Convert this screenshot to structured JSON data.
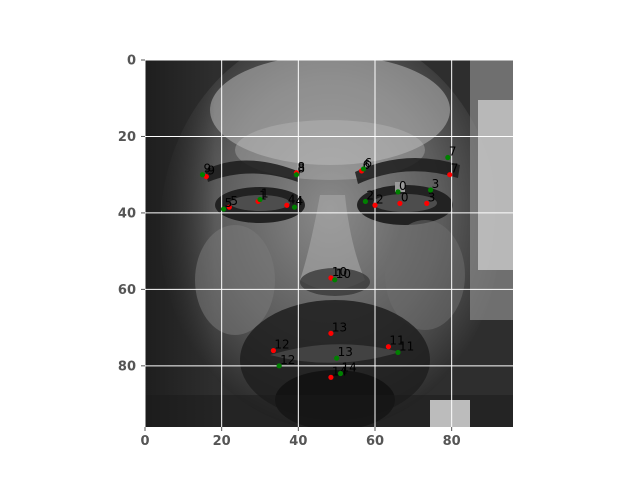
{
  "chart_data": {
    "type": "scatter",
    "title": "",
    "xlabel": "",
    "ylabel": "",
    "xlim": [
      0,
      96
    ],
    "ylim": [
      96,
      0
    ],
    "x_ticks": [
      "0",
      "20",
      "40",
      "60",
      "80"
    ],
    "y_ticks": [
      "0",
      "20",
      "40",
      "60",
      "80"
    ],
    "grid": true,
    "background": "grayscale face photograph",
    "series": [
      {
        "color": "#ff0000",
        "points": [
          {
            "x": 66.5,
            "y": 37.5,
            "label": "0"
          },
          {
            "x": 29.5,
            "y": 37.0,
            "label": "1"
          },
          {
            "x": 60.0,
            "y": 38.0,
            "label": "2"
          },
          {
            "x": 73.5,
            "y": 37.5,
            "label": "3"
          },
          {
            "x": 37.0,
            "y": 38.0,
            "label": "4"
          },
          {
            "x": 22.0,
            "y": 38.5,
            "label": "5"
          },
          {
            "x": 56.5,
            "y": 29.0,
            "label": "6"
          },
          {
            "x": 79.5,
            "y": 30.0,
            "label": "7"
          },
          {
            "x": 39.5,
            "y": 29.5,
            "label": "8"
          },
          {
            "x": 16.0,
            "y": 30.5,
            "label": "9"
          },
          {
            "x": 48.5,
            "y": 57.0,
            "label": "10"
          },
          {
            "x": 63.5,
            "y": 75.0,
            "label": "11"
          },
          {
            "x": 33.5,
            "y": 76.0,
            "label": "12"
          },
          {
            "x": 48.5,
            "y": 71.5,
            "label": "13"
          },
          {
            "x": 48.5,
            "y": 83.0,
            "label": "14"
          }
        ]
      },
      {
        "color": "#008000",
        "points": [
          {
            "x": 66.0,
            "y": 34.5,
            "label": "0"
          },
          {
            "x": 30.0,
            "y": 36.5,
            "label": "1"
          },
          {
            "x": 57.5,
            "y": 37.0,
            "label": "2"
          },
          {
            "x": 74.5,
            "y": 34.0,
            "label": "3"
          },
          {
            "x": 39.0,
            "y": 38.5,
            "label": "4"
          },
          {
            "x": 20.5,
            "y": 39.0,
            "label": "5"
          },
          {
            "x": 57.0,
            "y": 28.5,
            "label": "6"
          },
          {
            "x": 79.0,
            "y": 25.5,
            "label": "7"
          },
          {
            "x": 39.5,
            "y": 30.0,
            "label": "8"
          },
          {
            "x": 15.0,
            "y": 30.0,
            "label": "9"
          },
          {
            "x": 49.5,
            "y": 57.5,
            "label": "10"
          },
          {
            "x": 66.0,
            "y": 76.5,
            "label": "11"
          },
          {
            "x": 35.0,
            "y": 80.0,
            "label": "12"
          },
          {
            "x": 50.0,
            "y": 78.0,
            "label": "13"
          },
          {
            "x": 51.0,
            "y": 82.0,
            "label": "14"
          }
        ]
      }
    ]
  }
}
